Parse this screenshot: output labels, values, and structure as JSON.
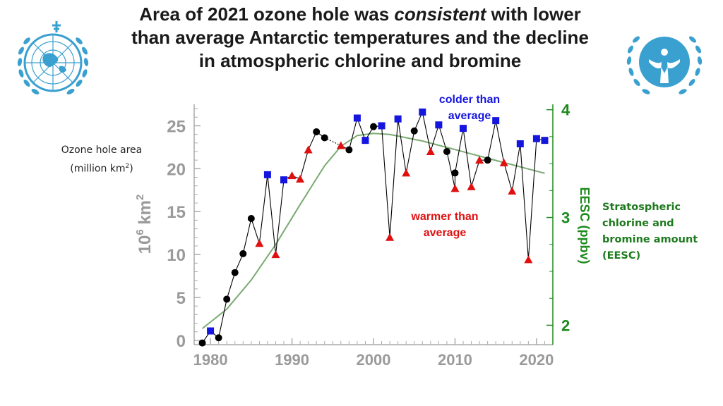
{
  "title": {
    "part1": "Area of 2021 ozone hole was ",
    "emph": "consistent",
    "part2": " with lower than average Antarctic temperatures and the decline in atmospheric chlorine and bromine"
  },
  "left_label": {
    "line1": "Ozone hole area",
    "line2_pre": "(million km",
    "line2_sup": "2",
    "line2_post": ")"
  },
  "right_label": "Stratospheric chlorine and bromine amount (EESC)",
  "annotations": {
    "colder": "colder than average",
    "warmer": "warmer than average"
  },
  "logos": {
    "left": "wmo-globe-laurel",
    "right": "unep-figure-laurel",
    "color": "#3aa0cf"
  },
  "colors": {
    "colder": "#1515e0",
    "warmer": "#e01010",
    "average": "#000000",
    "eesc": "#1e8a1e",
    "axis": "#aaaaaa"
  },
  "chart_data": {
    "type": "scatter",
    "xlabel": "",
    "ylabel": "10^6 km^2",
    "ylabel_right": "EESC (ppbv)",
    "xlim": [
      1978,
      2022
    ],
    "ylim": [
      -0.5,
      27.5
    ],
    "y2lim": [
      1.82,
      4.05
    ],
    "xticks": [
      1980,
      1990,
      2000,
      2010,
      2020
    ],
    "yticks": [
      0,
      5,
      10,
      15,
      20,
      25
    ],
    "y2ticks": [
      2,
      3,
      4
    ],
    "series": [
      {
        "name": "colder than average",
        "marker": "square",
        "points": [
          [
            1980,
            1.1
          ],
          [
            1987,
            19.3
          ],
          [
            1989,
            18.7
          ],
          [
            1998,
            25.9
          ],
          [
            1999,
            23.3
          ],
          [
            2001,
            25.0
          ],
          [
            2003,
            25.8
          ],
          [
            2006,
            26.6
          ],
          [
            2008,
            25.1
          ],
          [
            2011,
            24.7
          ],
          [
            2015,
            25.6
          ],
          [
            2018,
            22.9
          ],
          [
            2020,
            23.5
          ],
          [
            2021,
            23.3
          ]
        ]
      },
      {
        "name": "warmer than average",
        "marker": "triangle",
        "points": [
          [
            1986,
            11.3
          ],
          [
            1988,
            10.0
          ],
          [
            1990,
            19.2
          ],
          [
            1991,
            18.8
          ],
          [
            1992,
            22.2
          ],
          [
            1996,
            22.7
          ],
          [
            2002,
            12.0
          ],
          [
            2004,
            19.5
          ],
          [
            2007,
            22.0
          ],
          [
            2010,
            17.7
          ],
          [
            2012,
            17.9
          ],
          [
            2013,
            21.0
          ],
          [
            2016,
            20.7
          ],
          [
            2017,
            17.4
          ],
          [
            2019,
            9.4
          ]
        ]
      },
      {
        "name": "average",
        "marker": "circle",
        "points": [
          [
            1979,
            -0.3
          ],
          [
            1981,
            0.3
          ],
          [
            1982,
            4.8
          ],
          [
            1983,
            7.9
          ],
          [
            1984,
            10.1
          ],
          [
            1985,
            14.2
          ],
          [
            1993,
            24.3
          ],
          [
            1994,
            23.6
          ],
          [
            1997,
            22.2
          ],
          [
            2000,
            24.9
          ],
          [
            2005,
            24.4
          ],
          [
            2009,
            22.0
          ],
          [
            2010,
            19.5
          ],
          [
            2014,
            21.0
          ]
        ]
      },
      {
        "name": "EESC",
        "type": "line",
        "axis": "right",
        "points": [
          [
            1979,
            1.97
          ],
          [
            1982,
            2.15
          ],
          [
            1985,
            2.42
          ],
          [
            1988,
            2.75
          ],
          [
            1991,
            3.12
          ],
          [
            1994,
            3.48
          ],
          [
            1996,
            3.66
          ],
          [
            1998,
            3.76
          ],
          [
            2000,
            3.78
          ],
          [
            2002,
            3.77
          ],
          [
            2004,
            3.74
          ],
          [
            2006,
            3.71
          ],
          [
            2008,
            3.67
          ],
          [
            2010,
            3.63
          ],
          [
            2012,
            3.59
          ],
          [
            2014,
            3.55
          ],
          [
            2016,
            3.51
          ],
          [
            2018,
            3.47
          ],
          [
            2021,
            3.41
          ]
        ]
      }
    ]
  }
}
